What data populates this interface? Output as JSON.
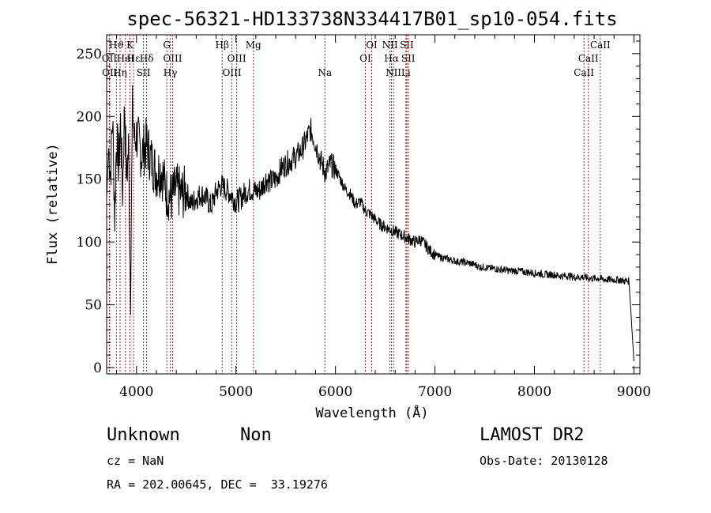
{
  "chart_data": {
    "type": "line",
    "title": "spec-56321-HD133738N334417B01_sp10-054.fits",
    "xlabel": "Wavelength (Å)",
    "ylabel": "Flux (relative)",
    "xlim": [
      3700,
      9060
    ],
    "ylim": [
      -5,
      265
    ],
    "xticks": [
      4000,
      5000,
      6000,
      7000,
      8000,
      9000
    ],
    "yticks": [
      0,
      50,
      100,
      150,
      200,
      250
    ],
    "grid": false,
    "series": [
      {
        "x": [
          3700,
          3720,
          3740,
          3760,
          3780,
          3800,
          3820,
          3840,
          3860,
          3880,
          3900,
          3920,
          3940,
          3960,
          3980,
          4000,
          4050,
          4100,
          4150,
          4200,
          4250,
          4300,
          4350,
          4400,
          4450,
          4500,
          4550,
          4600,
          4650,
          4700,
          4750,
          4800,
          4850,
          4900,
          4950,
          5000,
          5050,
          5100,
          5150,
          5200,
          5250,
          5300,
          5350,
          5400,
          5450,
          5500,
          5550,
          5600,
          5650,
          5700,
          5750,
          5800,
          5850,
          5900,
          5950,
          6000,
          6050,
          6100,
          6150,
          6200,
          6250,
          6300,
          6350,
          6400,
          6450,
          6500,
          6550,
          6600,
          6650,
          6700,
          6750,
          6800,
          6850,
          6900,
          6950,
          7000,
          7050,
          7100,
          7150,
          7200,
          7250,
          7300,
          7350,
          7400,
          7450,
          7500,
          7550,
          7600,
          7650,
          7700,
          7750,
          7800,
          7850,
          7900,
          7950,
          8000,
          8050,
          8100,
          8150,
          8200,
          8250,
          8300,
          8350,
          8400,
          8450,
          8500,
          8550,
          8600,
          8650,
          8700,
          8750,
          8800,
          8850,
          8900,
          8950,
          9000
        ],
        "y": [
          135,
          175,
          155,
          200,
          120,
          185,
          160,
          195,
          140,
          210,
          150,
          175,
          60,
          205,
          180,
          185,
          170,
          178,
          165,
          155,
          158,
          140,
          135,
          142,
          138,
          140,
          130,
          135,
          138,
          135,
          128,
          140,
          145,
          142,
          138,
          132,
          135,
          140,
          142,
          140,
          142,
          150,
          148,
          150,
          158,
          162,
          165,
          168,
          172,
          180,
          190,
          178,
          165,
          155,
          162,
          158,
          150,
          142,
          138,
          130,
          132,
          125,
          122,
          118,
          114,
          112,
          110,
          108,
          106,
          104,
          102,
          100,
          102,
          98,
          93,
          90,
          88,
          87,
          86,
          85,
          84,
          84,
          83,
          82,
          80,
          80,
          79,
          79,
          78,
          78,
          77,
          77,
          77,
          76,
          76,
          75,
          75,
          74,
          74,
          74,
          73,
          73,
          73,
          72,
          72,
          72,
          71,
          71,
          71,
          70,
          70,
          70,
          70,
          69,
          69,
          5
        ]
      }
    ],
    "emission_lines": [
      {
        "name": "Hϑ",
        "x": 3798,
        "row": 0
      },
      {
        "name": "OII",
        "x": 3727,
        "row": 1
      },
      {
        "name": "OII",
        "x": 3730,
        "row": 2
      },
      {
        "name": "K",
        "x": 3934,
        "row": 0
      },
      {
        "name": "HeI",
        "x": 3889,
        "row": 1
      },
      {
        "name": "Hη",
        "x": 3835,
        "row": 2
      },
      {
        "name": "Hε",
        "x": 3970,
        "row": 1
      },
      {
        "name": "Hδ",
        "x": 4102,
        "row": 1
      },
      {
        "name": "SII",
        "x": 4070,
        "row": 2
      },
      {
        "name": "G",
        "x": 4305,
        "row": 0
      },
      {
        "name": "OIII",
        "x": 4363,
        "row": 1
      },
      {
        "name": "Hγ",
        "x": 4340,
        "row": 2
      },
      {
        "name": "Hβ",
        "x": 4861,
        "row": 0
      },
      {
        "name": "OIII",
        "x": 5007,
        "row": 1
      },
      {
        "name": "OIII",
        "x": 4959,
        "row": 2
      },
      {
        "name": "Mg",
        "x": 5175,
        "row": 0
      },
      {
        "name": "Na",
        "x": 5893,
        "row": 2
      },
      {
        "name": "OI",
        "x": 6300,
        "row": 1
      },
      {
        "name": "OI",
        "x": 6364,
        "row": 0
      },
      {
        "name": "NII",
        "x": 6548,
        "row": 0
      },
      {
        "name": "Hα",
        "x": 6563,
        "row": 1
      },
      {
        "name": "NII",
        "x": 6583,
        "row": 2
      },
      {
        "name": "SII",
        "x": 6717,
        "row": 0
      },
      {
        "name": "SII",
        "x": 6731,
        "row": 1
      },
      {
        "name": "Li",
        "x": 6708,
        "row": 2
      },
      {
        "name": "CaII",
        "x": 8662,
        "row": 0
      },
      {
        "name": "CaII",
        "x": 8542,
        "row": 1
      },
      {
        "name": "CaII",
        "x": 8498,
        "row": 2
      }
    ]
  },
  "info": {
    "class": "Unknown",
    "subclass": "Non",
    "survey": "LAMOST DR2",
    "cz": "cz = NaN",
    "obs_date": "Obs-Date: 20130128",
    "coords": "RA = 202.00645, DEC =  33.19276"
  }
}
